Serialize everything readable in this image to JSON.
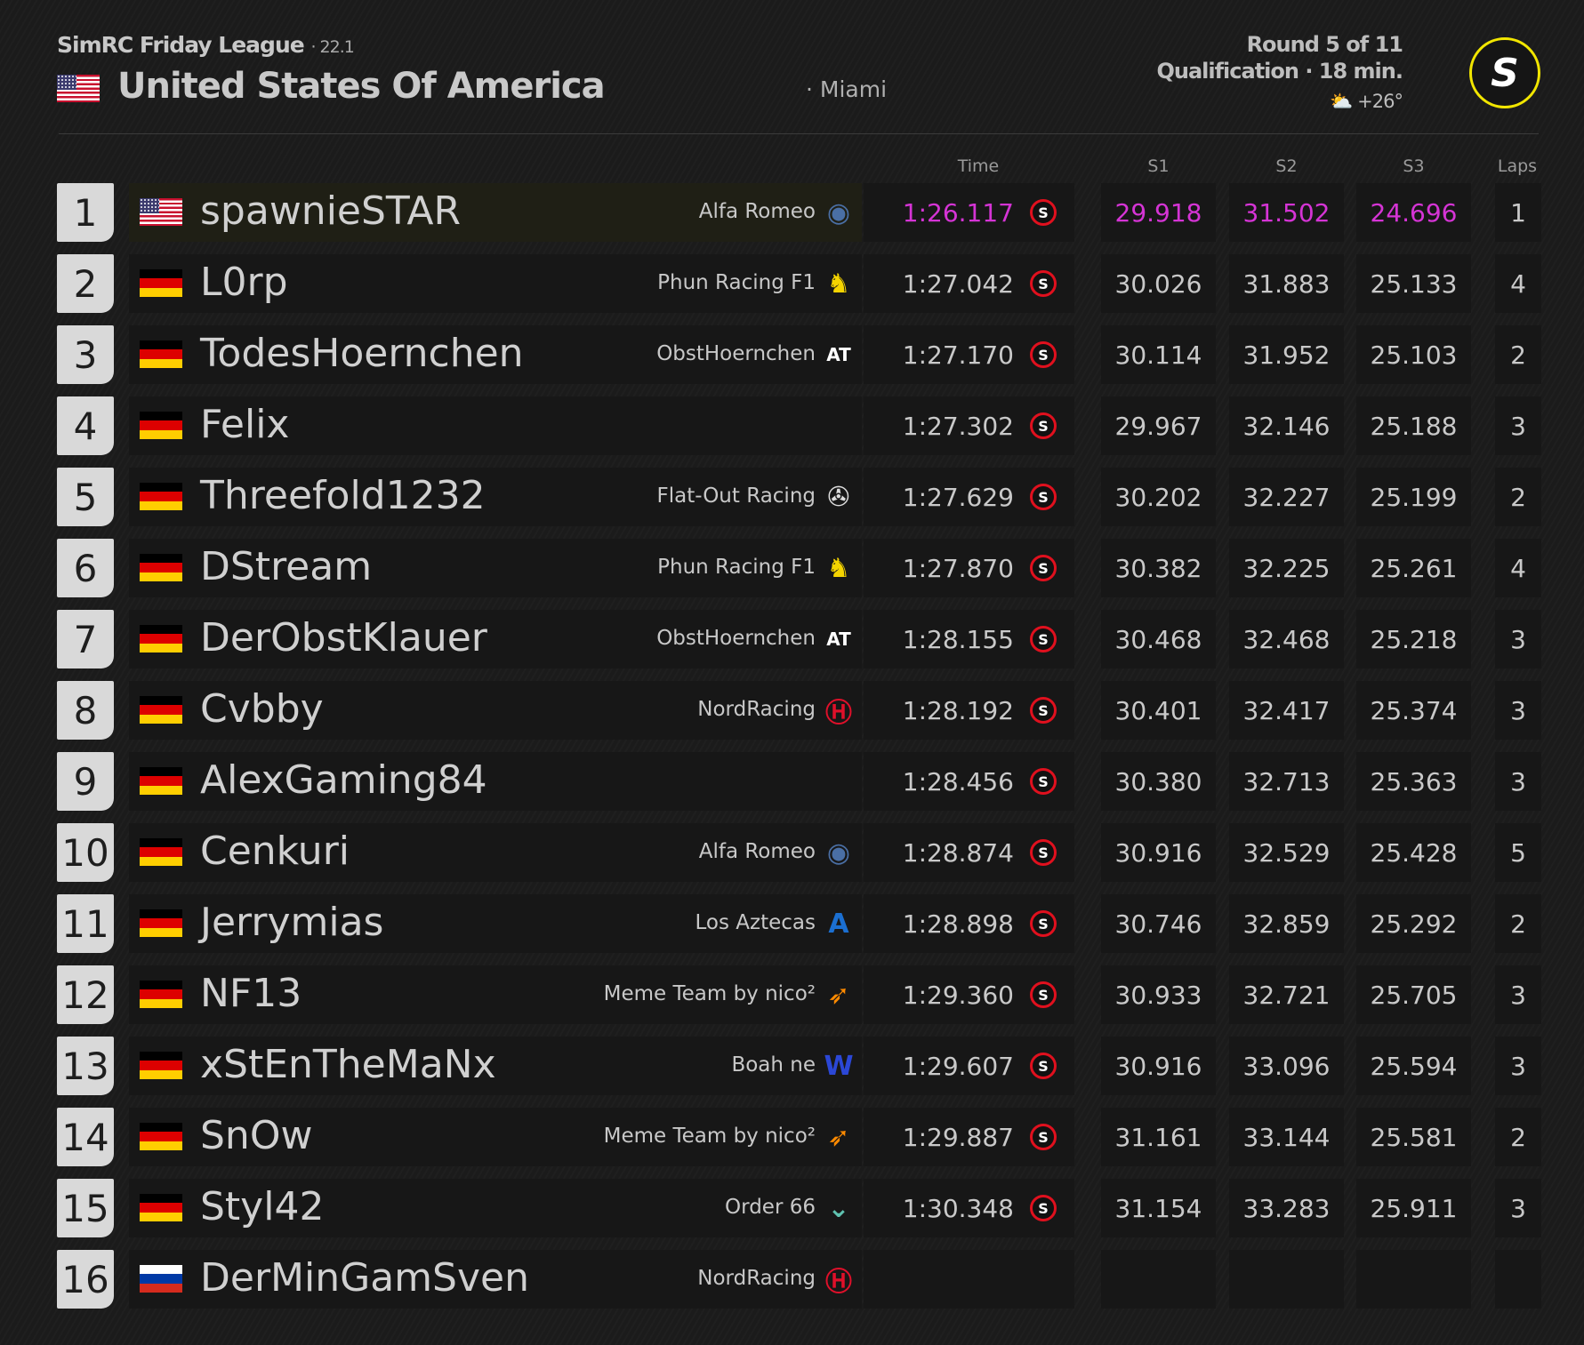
{
  "header": {
    "league": "SimRC Friday League",
    "season": "· 22.1",
    "country": "United States Of America",
    "city": "· Miami",
    "round": "Round 5 of 11",
    "session": "Qualification · 18 min.",
    "weather": "+26°",
    "weather_icon": "partly-cloudy-icon",
    "logo_text": "S",
    "logo_color": "#f2e600"
  },
  "columns": {
    "time": "Time",
    "s1": "S1",
    "s2": "S2",
    "s3": "S3",
    "laps": "Laps"
  },
  "colors": {
    "fastest": "#d534d5",
    "soft_tyre": "#e0101e"
  },
  "tyre_label": "S",
  "rows": [
    {
      "pos": "1",
      "flag": "us",
      "name": "spawnieSTAR",
      "team": "Alfa Romeo",
      "team_icon": "alfa-romeo-icon",
      "time": "1:26.117",
      "s1": "29.918",
      "s2": "31.502",
      "s3": "24.696",
      "laps": "1",
      "fastest": true
    },
    {
      "pos": "2",
      "flag": "de",
      "name": "L0rp",
      "team": "Phun Racing F1",
      "team_icon": "ferrari-icon",
      "time": "1:27.042",
      "s1": "30.026",
      "s2": "31.883",
      "s3": "25.133",
      "laps": "4"
    },
    {
      "pos": "3",
      "flag": "de",
      "name": "TodesHoernchen",
      "team": "ObstHoernchen",
      "team_icon": "alphatauri-icon",
      "time": "1:27.170",
      "s1": "30.114",
      "s2": "31.952",
      "s3": "25.103",
      "laps": "2"
    },
    {
      "pos": "4",
      "flag": "de",
      "name": "Felix",
      "team": "",
      "team_icon": "",
      "time": "1:27.302",
      "s1": "29.967",
      "s2": "32.146",
      "s3": "25.188",
      "laps": "3"
    },
    {
      "pos": "5",
      "flag": "de",
      "name": "Threefold1232",
      "team": "Flat-Out Racing",
      "team_icon": "mercedes-icon",
      "time": "1:27.629",
      "s1": "30.202",
      "s2": "32.227",
      "s3": "25.199",
      "laps": "2"
    },
    {
      "pos": "6",
      "flag": "de",
      "name": "DStream",
      "team": "Phun Racing F1",
      "team_icon": "ferrari-icon",
      "time": "1:27.870",
      "s1": "30.382",
      "s2": "32.225",
      "s3": "25.261",
      "laps": "4"
    },
    {
      "pos": "7",
      "flag": "de",
      "name": "DerObstKlauer",
      "team": "ObstHoernchen",
      "team_icon": "alphatauri-icon",
      "time": "1:28.155",
      "s1": "30.468",
      "s2": "32.468",
      "s3": "25.218",
      "laps": "3"
    },
    {
      "pos": "8",
      "flag": "de",
      "name": "Cvbby",
      "team": "NordRacing",
      "team_icon": "haas-icon",
      "time": "1:28.192",
      "s1": "30.401",
      "s2": "32.417",
      "s3": "25.374",
      "laps": "3"
    },
    {
      "pos": "9",
      "flag": "de",
      "name": "AlexGaming84",
      "team": "",
      "team_icon": "",
      "time": "1:28.456",
      "s1": "30.380",
      "s2": "32.713",
      "s3": "25.363",
      "laps": "3"
    },
    {
      "pos": "10",
      "flag": "de",
      "name": "Cenkuri",
      "team": "Alfa Romeo",
      "team_icon": "alfa-romeo-icon",
      "time": "1:28.874",
      "s1": "30.916",
      "s2": "32.529",
      "s3": "25.428",
      "laps": "5"
    },
    {
      "pos": "11",
      "flag": "de",
      "name": "Jerrymias",
      "team": "Los Aztecas",
      "team_icon": "alpine-icon",
      "time": "1:28.898",
      "s1": "30.746",
      "s2": "32.859",
      "s3": "25.292",
      "laps": "2"
    },
    {
      "pos": "12",
      "flag": "de",
      "name": "NF13",
      "team": "Meme Team by nico²",
      "team_icon": "mclaren-icon",
      "time": "1:29.360",
      "s1": "30.933",
      "s2": "32.721",
      "s3": "25.705",
      "laps": "3"
    },
    {
      "pos": "13",
      "flag": "de",
      "name": "xStEnTheMaNx",
      "team": "Boah ne",
      "team_icon": "williams-icon",
      "time": "1:29.607",
      "s1": "30.916",
      "s2": "33.096",
      "s3": "25.594",
      "laps": "3"
    },
    {
      "pos": "14",
      "flag": "de",
      "name": "SnOw",
      "team": "Meme Team by nico²",
      "team_icon": "mclaren-icon",
      "time": "1:29.887",
      "s1": "31.161",
      "s2": "33.144",
      "s3": "25.581",
      "laps": "2"
    },
    {
      "pos": "15",
      "flag": "de",
      "name": "Styl42",
      "team": "Order 66",
      "team_icon": "aston-martin-icon",
      "time": "1:30.348",
      "s1": "31.154",
      "s2": "33.283",
      "s3": "25.911",
      "laps": "3"
    },
    {
      "pos": "16",
      "flag": "ru",
      "name": "DerMinGamSven",
      "team": "NordRacing",
      "team_icon": "haas-icon",
      "time": "",
      "s1": "",
      "s2": "",
      "s3": "",
      "laps": ""
    }
  ]
}
